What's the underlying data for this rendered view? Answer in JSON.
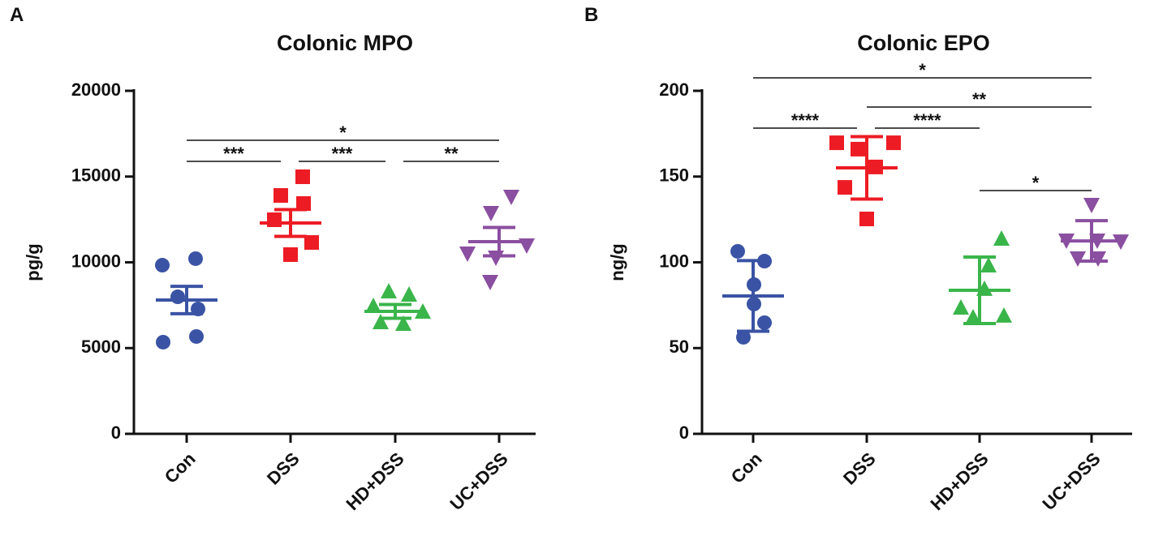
{
  "chart_data": [
    {
      "type": "dot_plot",
      "panel": "A",
      "title": "Colonic MPO",
      "ylabel": "pg/g",
      "categories": [
        "Con",
        "DSS",
        "HD+DSS",
        "UC+DSS"
      ],
      "colors": [
        "#3a53a4",
        "#ed1c24",
        "#3ab54a",
        "#8a4fa0"
      ],
      "markers": [
        "circle",
        "square",
        "triangle",
        "triangle-down"
      ],
      "values": [
        [
          9834,
          10213,
          7990,
          7281,
          5343,
          5674
        ],
        [
          14988,
          13900,
          13428,
          12482,
          11158,
          10450
        ],
        [
          8274,
          8085,
          7423,
          7092,
          6478,
          6383
        ],
        [
          13853,
          12908,
          11017,
          10544,
          10307,
          8889
        ]
      ],
      "means": [
        7801,
        12293,
        7139,
        11206
      ],
      "errors": [
        800,
        780,
        400,
        830
      ],
      "ylim": [
        0,
        20000
      ],
      "yticks": [
        0,
        5000,
        10000,
        15000,
        20000
      ],
      "annotations": [
        {
          "text": "*",
          "from": "Con",
          "to": "UC+DSS"
        },
        {
          "text": "***",
          "from": "Con",
          "to": "DSS"
        },
        {
          "text": "***",
          "from": "DSS",
          "to": "HD+DSS"
        },
        {
          "text": "**",
          "from": "HD+DSS",
          "to": "UC+DSS"
        }
      ]
    },
    {
      "type": "dot_plot",
      "panel": "B",
      "title": "Colonic EPO",
      "ylabel": "ng/g",
      "categories": [
        "Con",
        "DSS",
        "HD+DSS",
        "UC+DSS"
      ],
      "colors": [
        "#3a53a4",
        "#ed1c24",
        "#3ab54a",
        "#8a4fa0"
      ],
      "markers": [
        "circle",
        "square",
        "triangle",
        "triangle-down"
      ],
      "values": [
        [
          106.4,
          100.7,
          87,
          75.7,
          64.8,
          56.3
        ],
        [
          169.7,
          169.7,
          166,
          155.6,
          143.7,
          125.3
        ],
        [
          113.5,
          97.9,
          84.2,
          68.6,
          73.3,
          67.6
        ],
        [
          133.8,
          113,
          113,
          112.5,
          102.6,
          102.6
        ]
      ],
      "means": [
        80.4,
        155.1,
        83.7,
        112.5
      ],
      "errors": [
        20.6,
        18.2,
        19.4,
        11.8
      ],
      "ylim": [
        0,
        200
      ],
      "yticks": [
        0,
        50,
        100,
        150,
        200
      ],
      "annotations": [
        {
          "text": "*",
          "from": "Con",
          "to": "UC+DSS"
        },
        {
          "text": "**",
          "from": "DSS",
          "to": "UC+DSS"
        },
        {
          "text": "****",
          "from": "Con",
          "to": "DSS"
        },
        {
          "text": "****",
          "from": "DSS",
          "to": "HD+DSS"
        },
        {
          "text": "*",
          "from": "HD+DSS",
          "to": "UC+DSS"
        }
      ]
    }
  ]
}
